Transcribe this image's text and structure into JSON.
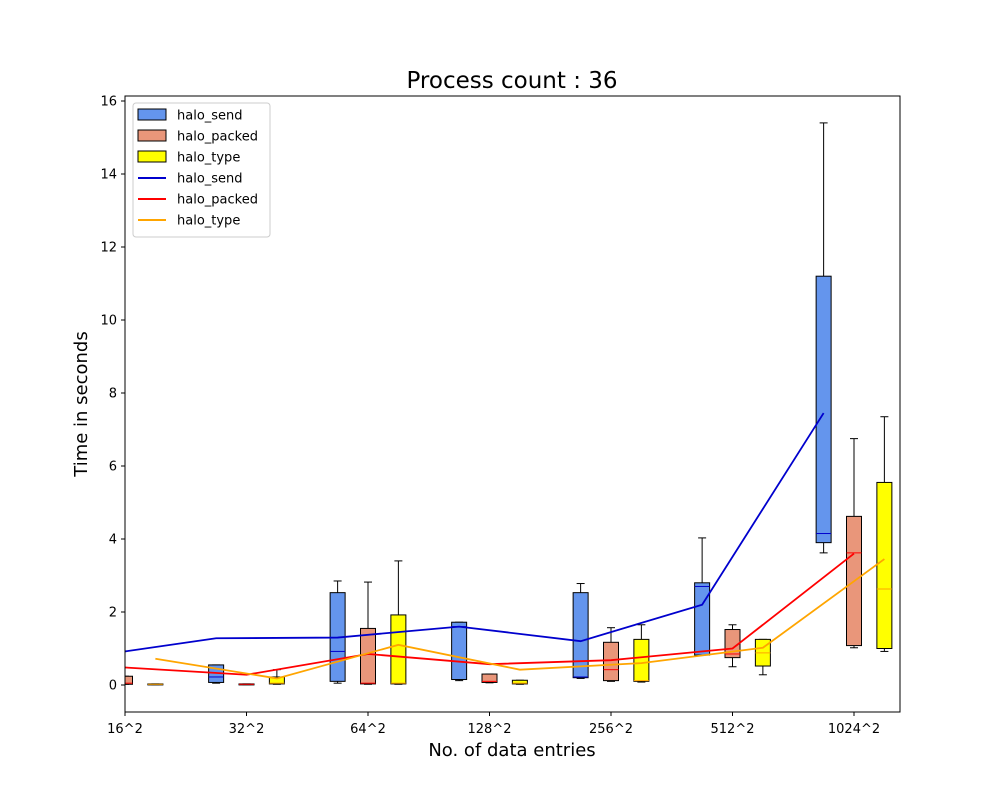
{
  "chart_data": {
    "type": "box",
    "title": "Process count : 36",
    "xlabel": "No. of data entries",
    "ylabel": "Time in seconds",
    "categories": [
      "16^2",
      "32^2",
      "64^2",
      "128^2",
      "256^2",
      "512^2",
      "1024^2"
    ],
    "ylim": [
      -0.75,
      16.2
    ],
    "yticks": [
      0,
      2,
      4,
      6,
      8,
      10,
      12,
      14,
      16
    ],
    "grid": false,
    "legend_position": "top-left",
    "box_series": [
      {
        "name": "halo_send",
        "color": "#6495ed",
        "median_color": "#0000cd",
        "boxes": [
          {
            "category": "16^2",
            "whisker_low": null,
            "q1": null,
            "median": null,
            "q3": null,
            "whisker_high": null
          },
          {
            "category": "32^2",
            "whisker_low": 0.05,
            "q1": 0.07,
            "median": 0.22,
            "q3": 0.55,
            "whisker_high": 0.55
          },
          {
            "category": "64^2",
            "whisker_low": 0.05,
            "q1": 0.1,
            "median": 0.92,
            "q3": 2.53,
            "whisker_high": 2.85
          },
          {
            "category": "128^2",
            "whisker_low": 0.12,
            "q1": 0.15,
            "median": 1.6,
            "q3": 1.72,
            "whisker_high": 1.72
          },
          {
            "category": "256^2",
            "whisker_low": 0.18,
            "q1": 0.2,
            "median": 0.22,
            "q3": 2.53,
            "whisker_high": 2.78
          },
          {
            "category": "512^2",
            "whisker_low": 0.82,
            "q1": 0.82,
            "median": 2.7,
            "q3": 2.8,
            "whisker_high": 4.03
          },
          {
            "category": "1024^2",
            "whisker_low": 3.62,
            "q1": 3.9,
            "median": 4.15,
            "q3": 11.2,
            "whisker_high": 15.4
          }
        ]
      },
      {
        "name": "halo_packed",
        "color": "#e9967a",
        "median_color": "#ff0000",
        "boxes": [
          {
            "category": "16^2",
            "whisker_low": 0.02,
            "q1": 0.02,
            "median": 0.05,
            "q3": 0.24,
            "whisker_high": 0.24
          },
          {
            "category": "32^2",
            "whisker_low": 0.01,
            "q1": 0.01,
            "median": 0.02,
            "q3": 0.03,
            "whisker_high": 0.03
          },
          {
            "category": "64^2",
            "whisker_low": 0.02,
            "q1": 0.03,
            "median": 0.05,
            "q3": 1.55,
            "whisker_high": 2.82
          },
          {
            "category": "128^2",
            "whisker_low": 0.06,
            "q1": 0.07,
            "median": 0.1,
            "q3": 0.3,
            "whisker_high": 0.3
          },
          {
            "category": "256^2",
            "whisker_low": 0.1,
            "q1": 0.12,
            "median": 0.42,
            "q3": 1.17,
            "whisker_high": 1.57
          },
          {
            "category": "512^2",
            "whisker_low": 0.5,
            "q1": 0.75,
            "median": 0.85,
            "q3": 1.52,
            "whisker_high": 1.65
          },
          {
            "category": "1024^2",
            "whisker_low": 1.02,
            "q1": 1.08,
            "median": 3.62,
            "q3": 4.62,
            "whisker_high": 6.75
          }
        ]
      },
      {
        "name": "halo_type",
        "color": "#ffff00",
        "median_color": "#ffa500",
        "boxes": [
          {
            "category": "16^2",
            "whisker_low": 0.01,
            "q1": 0.01,
            "median": 0.02,
            "q3": 0.03,
            "whisker_high": 0.03
          },
          {
            "category": "32^2",
            "whisker_low": 0.02,
            "q1": 0.03,
            "median": 0.05,
            "q3": 0.22,
            "whisker_high": 0.42
          },
          {
            "category": "64^2",
            "whisker_low": 0.02,
            "q1": 0.03,
            "median": 0.05,
            "q3": 1.92,
            "whisker_high": 3.4
          },
          {
            "category": "128^2",
            "whisker_low": 0.02,
            "q1": 0.03,
            "median": 0.05,
            "q3": 0.13,
            "whisker_high": 0.13
          },
          {
            "category": "256^2",
            "whisker_low": 0.08,
            "q1": 0.1,
            "median": 0.12,
            "q3": 1.25,
            "whisker_high": 1.65
          },
          {
            "category": "512^2",
            "whisker_low": 0.28,
            "q1": 0.52,
            "median": 0.88,
            "q3": 1.25,
            "whisker_high": 1.25
          },
          {
            "category": "1024^2",
            "whisker_low": 0.92,
            "q1": 1.0,
            "median": 2.63,
            "q3": 5.55,
            "whisker_high": 7.35
          }
        ]
      }
    ],
    "line_series": [
      {
        "name": "halo_send",
        "color": "#0000cd",
        "points": [
          {
            "category": "16^2",
            "offset": -0.25,
            "y": 0.8
          },
          {
            "category": "32^2",
            "offset": -0.25,
            "y": 1.28
          },
          {
            "category": "64^2",
            "offset": -0.25,
            "y": 1.3
          },
          {
            "category": "128^2",
            "offset": -0.25,
            "y": 1.6
          },
          {
            "category": "256^2",
            "offset": -0.25,
            "y": 1.2
          },
          {
            "category": "512^2",
            "offset": -0.25,
            "y": 2.2
          },
          {
            "category": "1024^2",
            "offset": -0.25,
            "y": 7.45
          }
        ]
      },
      {
        "name": "halo_packed",
        "color": "#ff0000",
        "points": [
          {
            "category": "16^2",
            "offset": 0,
            "y": 0.48
          },
          {
            "category": "32^2",
            "offset": 0,
            "y": 0.28
          },
          {
            "category": "64^2",
            "offset": 0,
            "y": 0.85
          },
          {
            "category": "128^2",
            "offset": 0,
            "y": 0.57
          },
          {
            "category": "256^2",
            "offset": 0,
            "y": 0.68
          },
          {
            "category": "512^2",
            "offset": 0,
            "y": 1.0
          },
          {
            "category": "1024^2",
            "offset": 0,
            "y": 3.6
          }
        ]
      },
      {
        "name": "halo_type",
        "color": "#ffa500",
        "points": [
          {
            "category": "16^2",
            "offset": 0.25,
            "y": 0.72
          },
          {
            "category": "32^2",
            "offset": 0.25,
            "y": 0.18
          },
          {
            "category": "64^2",
            "offset": 0.25,
            "y": 1.1
          },
          {
            "category": "128^2",
            "offset": 0.25,
            "y": 0.42
          },
          {
            "category": "256^2",
            "offset": 0.25,
            "y": 0.6
          },
          {
            "category": "512^2",
            "offset": 0.25,
            "y": 1.02
          },
          {
            "category": "1024^2",
            "offset": 0.25,
            "y": 3.45
          }
        ]
      }
    ]
  }
}
